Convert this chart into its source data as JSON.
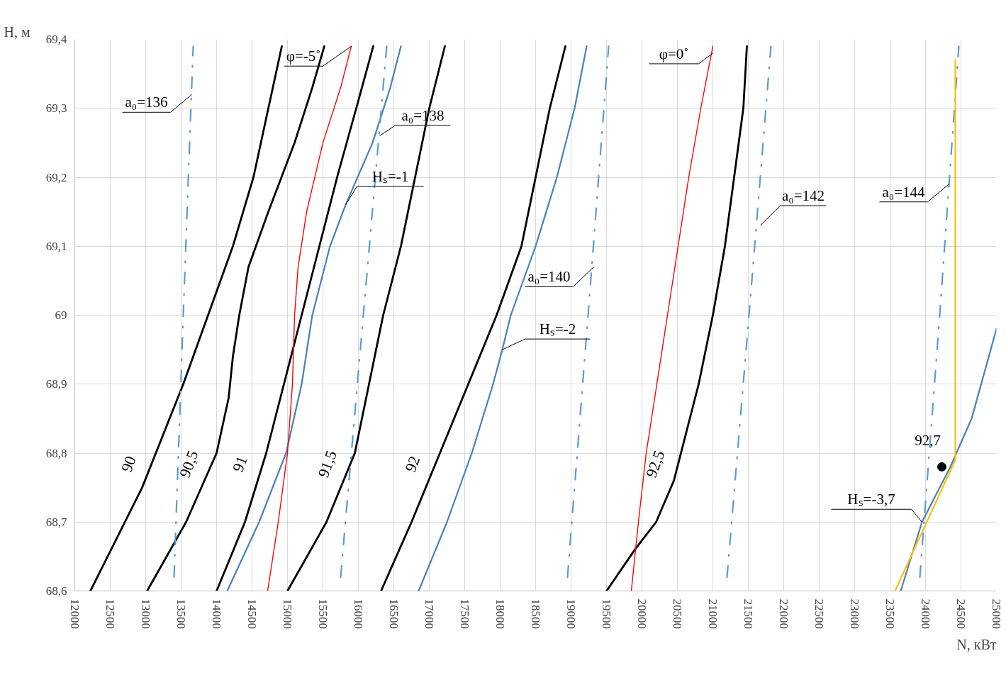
{
  "chart_data": {
    "type": "line",
    "xlabel": "N, кВт",
    "ylabel": "H, м",
    "xlim": [
      12000,
      25000
    ],
    "ylim": [
      68.6,
      69.4
    ],
    "xticks": [
      12000,
      12500,
      13000,
      13500,
      14000,
      14500,
      15000,
      15500,
      16000,
      16500,
      17000,
      17500,
      18000,
      18500,
      19000,
      19500,
      20000,
      20500,
      21000,
      21500,
      22000,
      22500,
      23000,
      23500,
      24000,
      24500,
      25000
    ],
    "yticks": [
      {
        "value": 68.6,
        "label": "68,6"
      },
      {
        "value": 68.7,
        "label": "68,7"
      },
      {
        "value": 68.8,
        "label": "68,8"
      },
      {
        "value": 68.9,
        "label": "68,9"
      },
      69,
      {
        "value": 69.1,
        "label": "69,1"
      },
      {
        "value": 69.2,
        "label": "69,2"
      },
      {
        "value": 69.3,
        "label": "69,3"
      },
      {
        "value": 69.4,
        "label": "69,4"
      }
    ],
    "grid": true,
    "line_style": "solid",
    "series": [
      {
        "name": "90",
        "color": "#000000",
        "x": [
          12220,
          12950,
          13530,
          13880,
          14230,
          14520,
          14730,
          14920
        ],
        "values": [
          68.6,
          68.75,
          68.9,
          69.0,
          69.1,
          69.2,
          69.3,
          69.39
        ]
      },
      {
        "name": "90,5",
        "color": "#000000",
        "x": [
          13020,
          13570,
          14000,
          14170,
          14230,
          14320,
          14450,
          14730,
          15100,
          15350,
          15520
        ],
        "values": [
          68.6,
          68.7,
          68.8,
          68.88,
          68.94,
          69.0,
          69.07,
          69.15,
          69.25,
          69.33,
          69.39
        ]
      },
      {
        "name": "91",
        "color": "#000000",
        "x": [
          14000,
          14400,
          14700,
          14950,
          15200,
          15450,
          15700,
          15970,
          16210
        ],
        "values": [
          68.6,
          68.7,
          68.8,
          68.9,
          69.0,
          69.1,
          69.2,
          69.3,
          69.39
        ]
      },
      {
        "name": "91,5",
        "color": "#000000",
        "x": [
          15000,
          15550,
          15950,
          16150,
          16350,
          16600,
          16800,
          17000,
          17220
        ],
        "values": [
          68.6,
          68.7,
          68.8,
          68.9,
          69.0,
          69.1,
          69.2,
          69.3,
          69.39
        ]
      },
      {
        "name": "92",
        "color": "#000000",
        "x": [
          16320,
          16750,
          17150,
          17550,
          17950,
          18300,
          18500,
          18700,
          18920
        ],
        "values": [
          68.6,
          68.7,
          68.8,
          68.9,
          69.0,
          69.1,
          69.2,
          69.3,
          69.39
        ]
      },
      {
        "name": "92,5",
        "color": "#000000",
        "x": [
          19500,
          19900,
          20200,
          20450,
          20600,
          20800,
          21000,
          21170,
          21300,
          21430,
          21480
        ],
        "values": [
          68.6,
          68.66,
          68.7,
          68.76,
          68.82,
          68.9,
          69.0,
          69.1,
          69.2,
          69.3,
          69.39
        ]
      },
      {
        "color": "#4a7ebb",
        "x": [
          14150,
          14600,
          14980,
          15200,
          15350,
          15600,
          15820,
          16200,
          16450,
          16600
        ],
        "values": [
          68.6,
          68.7,
          68.8,
          68.9,
          69.0,
          69.1,
          69.16,
          69.25,
          69.33,
          69.39
        ]
      },
      {
        "color": "#4a7ebb",
        "x": [
          16850,
          17250,
          17600,
          17900,
          18030,
          18150,
          18500,
          18800,
          19050,
          19220
        ],
        "values": [
          68.6,
          68.7,
          68.8,
          68.9,
          68.95,
          69.0,
          69.1,
          69.2,
          69.3,
          69.39
        ]
      },
      {
        "color": "#4a7ebb",
        "x": [
          23650,
          23950,
          24350,
          24650,
          25000
        ],
        "values": [
          68.6,
          68.7,
          68.78,
          68.85,
          68.98
        ]
      },
      {
        "color": "#ff0000",
        "x": [
          14720,
          14870,
          15000,
          15070,
          15100,
          15150,
          15270,
          15500,
          15750,
          15900
        ],
        "values": [
          68.6,
          68.7,
          68.8,
          68.9,
          69.0,
          69.07,
          69.15,
          69.25,
          69.33,
          69.39
        ]
      },
      {
        "color": "#ff0000",
        "x": [
          19850,
          19950,
          20060,
          20210,
          20360,
          20510,
          20660,
          20830,
          21000
        ],
        "values": [
          68.6,
          68.7,
          68.8,
          68.9,
          69.0,
          69.1,
          69.2,
          69.3,
          69.39
        ]
      },
      {
        "color": "#5b9bd5",
        "line_style": "dashed",
        "x": [
          13400,
          13530,
          13670
        ],
        "values": [
          68.62,
          69.0,
          69.39
        ]
      },
      {
        "color": "#5b9bd5",
        "line_style": "dashed",
        "x": [
          15750,
          16070,
          16400
        ],
        "values": [
          68.62,
          69.0,
          69.39
        ]
      },
      {
        "color": "#5b9bd5",
        "line_style": "dashed",
        "x": [
          18950,
          19240,
          19530
        ],
        "values": [
          68.62,
          69.0,
          69.39
        ]
      },
      {
        "color": "#5b9bd5",
        "line_style": "dashed",
        "x": [
          21200,
          21510,
          21820
        ],
        "values": [
          68.62,
          69.0,
          69.39
        ]
      },
      {
        "color": "#5b9bd5",
        "line_style": "dashed",
        "x": [
          23920,
          24200,
          24470
        ],
        "values": [
          68.62,
          69.0,
          69.39
        ]
      },
      {
        "color": "#ffc000",
        "x": [
          23570,
          24420,
          24420
        ],
        "values": [
          68.6,
          68.79,
          69.37
        ]
      },
      {
        "type": "scatter",
        "marker": "circle",
        "color": "#000000",
        "x": [
          24230
        ],
        "values": [
          68.78
        ]
      }
    ],
    "annotations": [
      {
        "text": "a₀=136",
        "x": 13650,
        "y": 69.32
      },
      {
        "text": "a₀=138",
        "x": 16300,
        "y": 69.26
      },
      {
        "text": "Hₛ=-1",
        "x": 15820,
        "y": 69.16
      },
      {
        "text": "a₀=140",
        "x": 19320,
        "y": 69.07
      },
      {
        "text": "Hₛ=-2",
        "x": 18030,
        "y": 68.95
      },
      {
        "text": "a₀=142",
        "x": 21670,
        "y": 69.13
      },
      {
        "text": "a₀=144",
        "x": 24330,
        "y": 69.19
      },
      {
        "text": "Hₛ=-3,7",
        "x": 23950,
        "y": 68.7
      },
      {
        "text": "φ=-5˚",
        "x": 15900,
        "y": 69.39
      },
      {
        "text": "φ=0˚",
        "x": 21000,
        "y": 69.38
      },
      {
        "text": "92,7",
        "x": 24230,
        "y": 68.78
      }
    ]
  }
}
